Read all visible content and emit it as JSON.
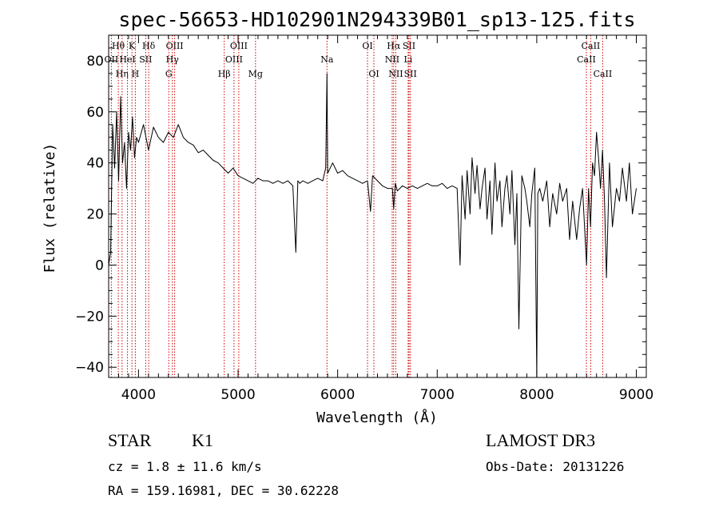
{
  "chart_data": {
    "type": "line",
    "title": "spec-56653-HD102901N294339B01_sp13-125.fits",
    "xlabel": "Wavelength (Å)",
    "ylabel": "Flux (relative)",
    "xlim": [
      3700,
      9100
    ],
    "ylim": [
      -44,
      90
    ],
    "x_ticks": [
      4000,
      5000,
      6000,
      7000,
      8000,
      9000
    ],
    "y_ticks": [
      -40,
      -20,
      0,
      20,
      40,
      60,
      80
    ],
    "grid": false,
    "series": [
      {
        "name": "flux",
        "x": [
          3700,
          3720,
          3740,
          3760,
          3780,
          3800,
          3820,
          3840,
          3860,
          3880,
          3900,
          3920,
          3940,
          3960,
          3980,
          4000,
          4050,
          4100,
          4150,
          4200,
          4250,
          4300,
          4350,
          4400,
          4450,
          4500,
          4550,
          4600,
          4650,
          4700,
          4750,
          4800,
          4850,
          4900,
          4950,
          5000,
          5050,
          5100,
          5150,
          5200,
          5250,
          5300,
          5350,
          5400,
          5450,
          5500,
          5550,
          5580,
          5600,
          5620,
          5650,
          5700,
          5750,
          5800,
          5850,
          5880,
          5893,
          5900,
          5950,
          6000,
          6050,
          6100,
          6150,
          6200,
          6250,
          6300,
          6330,
          6350,
          6400,
          6450,
          6500,
          6550,
          6563,
          6580,
          6600,
          6650,
          6700,
          6750,
          6800,
          6850,
          6900,
          6950,
          7000,
          7050,
          7100,
          7150,
          7200,
          7230,
          7250,
          7280,
          7300,
          7330,
          7350,
          7380,
          7400,
          7430,
          7450,
          7480,
          7500,
          7530,
          7550,
          7580,
          7600,
          7630,
          7650,
          7680,
          7700,
          7730,
          7750,
          7780,
          7800,
          7820,
          7850,
          7880,
          7900,
          7930,
          7950,
          7980,
          8000,
          8010,
          8030,
          8060,
          8100,
          8130,
          8160,
          8200,
          8230,
          8260,
          8300,
          8330,
          8360,
          8400,
          8430,
          8460,
          8500,
          8520,
          8540,
          8560,
          8580,
          8600,
          8620,
          8640,
          8660,
          8680,
          8700,
          8730,
          8760,
          8800,
          8830,
          8860,
          8900,
          8930,
          8960,
          9000
        ],
        "y": [
          0,
          5,
          55,
          38,
          60,
          33,
          66,
          40,
          48,
          30,
          52,
          45,
          58,
          42,
          50,
          48,
          55,
          45,
          54,
          50,
          48,
          52,
          50,
          55,
          50,
          48,
          47,
          44,
          45,
          43,
          41,
          40,
          38,
          36,
          38,
          35,
          34,
          33,
          32,
          34,
          33,
          33,
          32,
          33,
          32,
          33,
          31,
          5,
          33,
          32,
          33,
          32,
          33,
          34,
          33,
          38,
          75,
          36,
          40,
          36,
          37,
          35,
          34,
          33,
          32,
          33,
          21,
          35,
          33,
          31,
          30,
          30,
          22,
          32,
          29,
          31,
          30,
          31,
          30,
          31,
          32,
          31,
          31,
          32,
          30,
          31,
          30,
          0,
          35,
          18,
          37,
          20,
          42,
          28,
          39,
          22,
          30,
          38,
          18,
          33,
          12,
          40,
          25,
          33,
          15,
          30,
          35,
          20,
          37,
          8,
          28,
          -25,
          35,
          30,
          25,
          15,
          28,
          38,
          -44,
          28,
          30,
          25,
          33,
          15,
          28,
          20,
          32,
          25,
          30,
          10,
          25,
          10,
          22,
          30,
          0,
          30,
          15,
          40,
          35,
          52,
          42,
          30,
          45,
          25,
          -5,
          40,
          15,
          30,
          25,
          38,
          25,
          40,
          20,
          30
        ]
      }
    ],
    "line_markers": [
      {
        "label": "Hθ",
        "wavelength": 3797,
        "row": 1
      },
      {
        "label": "OII",
        "wavelength": 3727,
        "row": 2
      },
      {
        "label": "Hη",
        "wavelength": 3835,
        "row": 3
      },
      {
        "label": "HeI",
        "wavelength": 3889,
        "row": 2
      },
      {
        "label": "K",
        "wavelength": 3934,
        "row": 1
      },
      {
        "label": "H",
        "wavelength": 3968,
        "row": 3
      },
      {
        "label": "SII",
        "wavelength": 4072,
        "row": 2
      },
      {
        "label": "Hδ",
        "wavelength": 4102,
        "row": 1
      },
      {
        "label": "OIII",
        "wavelength": 4363,
        "row": 1
      },
      {
        "label": "Hγ",
        "wavelength": 4340,
        "row": 2
      },
      {
        "label": "G",
        "wavelength": 4304,
        "row": 3
      },
      {
        "label": "Hβ",
        "wavelength": 4861,
        "row": 3
      },
      {
        "label": "OIII",
        "wavelength": 5007,
        "row": 1
      },
      {
        "label": "OIII",
        "wavelength": 4959,
        "row": 2
      },
      {
        "label": "Mg",
        "wavelength": 5175,
        "row": 3
      },
      {
        "label": "Na",
        "wavelength": 5893,
        "row": 2
      },
      {
        "label": "OI",
        "wavelength": 6300,
        "row": 1
      },
      {
        "label": "OI",
        "wavelength": 6364,
        "row": 3
      },
      {
        "label": "Hα",
        "wavelength": 6563,
        "row": 1
      },
      {
        "label": "NII",
        "wavelength": 6548,
        "row": 2
      },
      {
        "label": "NII",
        "wavelength": 6584,
        "row": 3
      },
      {
        "label": "SII",
        "wavelength": 6717,
        "row": 1
      },
      {
        "label": "Li",
        "wavelength": 6708,
        "row": 2
      },
      {
        "label": "SII",
        "wavelength": 6731,
        "row": 3
      },
      {
        "label": "CaII",
        "wavelength": 8542,
        "row": 1
      },
      {
        "label": "CaII",
        "wavelength": 8498,
        "row": 2
      },
      {
        "label": "CaII",
        "wavelength": 8662,
        "row": 3
      }
    ]
  },
  "info": {
    "object_type": "STAR",
    "subclass": "K1",
    "survey": "LAMOST DR3",
    "redshift": "cz = 1.8 ± 11.6 km/s",
    "obs_date": "Obs-Date: 20131226",
    "coords": "RA = 159.16981, DEC =  30.62228"
  }
}
